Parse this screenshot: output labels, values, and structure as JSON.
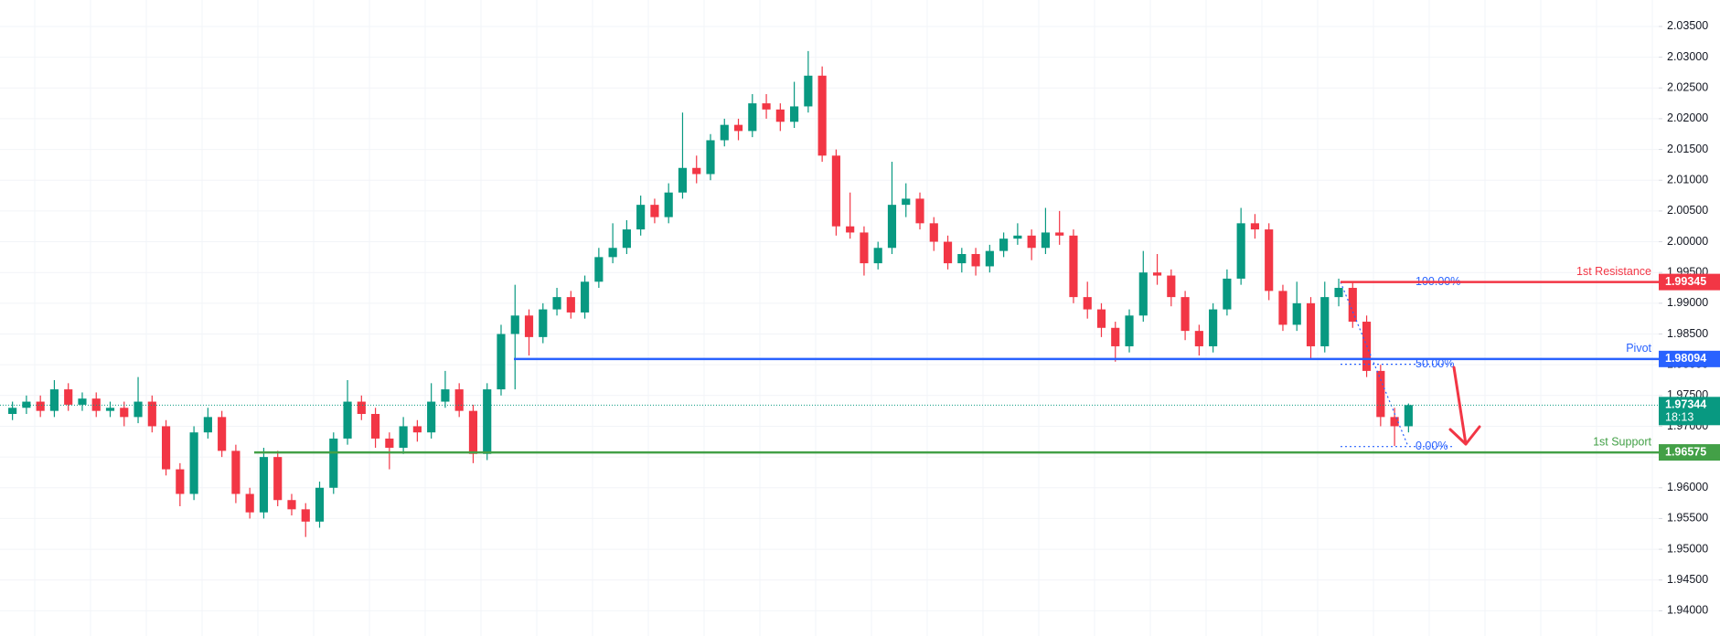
{
  "chart_data": {
    "type": "candlestick",
    "up_color": "#089981",
    "down_color": "#f23645",
    "grid": true,
    "ylim": [
      1.9359,
      2.0393
    ],
    "yticks": [
      {
        "value": 1.94,
        "label": "1.94000"
      },
      {
        "value": 1.945,
        "label": "1.94500"
      },
      {
        "value": 1.95,
        "label": "1.95000"
      },
      {
        "value": 1.955,
        "label": "1.95500"
      },
      {
        "value": 1.96,
        "label": "1.96000"
      },
      {
        "value": 1.965,
        "label": "1.96500"
      },
      {
        "value": 1.97,
        "label": "1.97000"
      },
      {
        "value": 1.975,
        "label": "1.97500"
      },
      {
        "value": 1.98,
        "label": "1.98000"
      },
      {
        "value": 1.985,
        "label": "1.98500"
      },
      {
        "value": 1.99,
        "label": "1.99000"
      },
      {
        "value": 1.995,
        "label": "1.99500"
      },
      {
        "value": 2.0,
        "label": "2.00000"
      },
      {
        "value": 2.005,
        "label": "2.00500"
      },
      {
        "value": 2.01,
        "label": "2.01000"
      },
      {
        "value": 2.015,
        "label": "2.01500"
      },
      {
        "value": 2.02,
        "label": "2.02000"
      },
      {
        "value": 2.025,
        "label": "2.02500"
      },
      {
        "value": 2.03,
        "label": "2.03000"
      },
      {
        "value": 2.035,
        "label": "2.03500"
      }
    ],
    "open": [
      1.972,
      1.973,
      1.974,
      1.9725,
      1.976,
      1.9735,
      1.9745,
      1.9725,
      1.973,
      1.9715,
      1.974,
      1.97,
      1.963,
      1.959,
      1.969,
      1.9715,
      1.966,
      1.959,
      1.956,
      1.965,
      1.958,
      1.9565,
      1.9545,
      1.96,
      1.968,
      1.974,
      1.972,
      1.968,
      1.9665,
      1.97,
      1.969,
      1.974,
      1.976,
      1.9725,
      1.9655,
      1.976,
      1.985,
      1.988,
      1.9845,
      1.989,
      1.991,
      1.9885,
      1.9935,
      1.9975,
      1.999,
      2.002,
      2.006,
      2.004,
      2.008,
      2.012,
      2.011,
      2.0165,
      2.019,
      2.018,
      2.0225,
      2.0215,
      2.0195,
      2.022,
      2.027,
      2.014,
      2.0025,
      2.0015,
      1.9965,
      1.999,
      2.006,
      2.007,
      2.003,
      2.0,
      1.9965,
      1.998,
      1.996,
      1.9985,
      2.0005,
      2.001,
      1.999,
      2.0015,
      2.001,
      1.991,
      1.989,
      1.986,
      1.983,
      1.988,
      1.995,
      1.9945,
      1.991,
      1.9855,
      1.983,
      1.989,
      1.994,
      2.003,
      2.002,
      1.992,
      1.9865,
      1.99,
      1.983,
      1.991,
      1.9925,
      1.987,
      1.979,
      1.9715,
      1.97
    ],
    "high": [
      1.974,
      1.975,
      1.975,
      1.9775,
      1.977,
      1.9755,
      1.9755,
      1.974,
      1.974,
      1.978,
      1.975,
      1.971,
      1.964,
      1.97,
      1.973,
      1.9725,
      1.967,
      1.96,
      1.9665,
      1.966,
      1.959,
      1.9575,
      1.961,
      1.969,
      1.9775,
      1.975,
      1.973,
      1.969,
      1.9715,
      1.971,
      1.977,
      1.979,
      1.977,
      1.9735,
      1.977,
      1.9865,
      1.993,
      1.989,
      1.99,
      1.9925,
      1.992,
      1.9945,
      1.999,
      2.003,
      2.0035,
      2.0075,
      2.007,
      2.0095,
      2.021,
      2.014,
      2.0175,
      2.02,
      2.02,
      2.024,
      2.024,
      2.0225,
      2.026,
      2.031,
      2.0285,
      2.015,
      2.008,
      2.0025,
      2.0,
      2.013,
      2.0095,
      2.008,
      2.004,
      2.001,
      1.999,
      1.999,
      1.9995,
      2.0015,
      2.003,
      2.002,
      2.0055,
      2.005,
      2.002,
      1.9935,
      1.99,
      1.987,
      1.989,
      1.9985,
      1.998,
      1.9955,
      1.992,
      1.9865,
      1.99,
      1.9955,
      2.0055,
      2.0045,
      2.003,
      1.993,
      1.9935,
      1.991,
      1.9935,
      1.994,
      1.9935,
      1.988,
      1.98,
      1.973,
      1.9737
    ],
    "low": [
      1.971,
      1.972,
      1.9715,
      1.9715,
      1.9725,
      1.9725,
      1.9715,
      1.9715,
      1.97,
      1.9705,
      1.969,
      1.962,
      1.957,
      1.958,
      1.968,
      1.965,
      1.9575,
      1.955,
      1.955,
      1.957,
      1.9555,
      1.952,
      1.9535,
      1.959,
      1.967,
      1.971,
      1.9665,
      1.963,
      1.9655,
      1.9675,
      1.968,
      1.973,
      1.9715,
      1.964,
      1.9645,
      1.975,
      1.976,
      1.9815,
      1.9835,
      1.988,
      1.9875,
      1.9875,
      1.9925,
      1.9965,
      1.998,
      2.001,
      2.003,
      2.003,
      2.007,
      2.0095,
      2.01,
      2.0155,
      2.0165,
      2.017,
      2.02,
      2.018,
      2.0185,
      2.021,
      2.013,
      2.001,
      2.0005,
      1.9945,
      1.9955,
      1.998,
      2.004,
      2.002,
      1.9985,
      1.9955,
      1.995,
      1.9945,
      1.995,
      1.9975,
      1.9995,
      1.997,
      1.998,
      1.9995,
      1.99,
      1.9875,
      1.9845,
      1.9805,
      1.982,
      1.987,
      1.993,
      1.9895,
      1.984,
      1.9815,
      1.982,
      1.988,
      1.993,
      2.0005,
      1.9905,
      1.9855,
      1.9855,
      1.981,
      1.982,
      1.9895,
      1.986,
      1.978,
      1.97,
      1.9668,
      1.969
    ],
    "close": [
      1.973,
      1.974,
      1.9725,
      1.976,
      1.9735,
      1.9745,
      1.9725,
      1.973,
      1.9715,
      1.974,
      1.97,
      1.963,
      1.959,
      1.969,
      1.9715,
      1.966,
      1.959,
      1.956,
      1.965,
      1.958,
      1.9565,
      1.9545,
      1.96,
      1.968,
      1.974,
      1.972,
      1.968,
      1.9665,
      1.97,
      1.969,
      1.974,
      1.976,
      1.9725,
      1.9655,
      1.976,
      1.985,
      1.988,
      1.9845,
      1.989,
      1.991,
      1.9885,
      1.9935,
      1.9975,
      1.999,
      2.002,
      2.006,
      2.004,
      2.008,
      2.012,
      2.011,
      2.0165,
      2.019,
      2.018,
      2.0225,
      2.0215,
      2.0195,
      2.022,
      2.027,
      2.014,
      2.0025,
      2.0015,
      1.9965,
      1.999,
      2.006,
      2.007,
      2.003,
      2.0,
      1.9965,
      1.998,
      1.996,
      1.9985,
      2.0005,
      2.001,
      1.999,
      2.0015,
      2.001,
      1.991,
      1.989,
      1.986,
      1.983,
      1.988,
      1.995,
      1.9945,
      1.991,
      1.9855,
      1.983,
      1.989,
      1.994,
      2.003,
      2.002,
      1.992,
      1.9865,
      1.99,
      1.983,
      1.991,
      1.9925,
      1.987,
      1.979,
      1.9715,
      1.97,
      1.97344
    ],
    "price_lines": [
      {
        "label": "1st Resistance",
        "value": 1.99345,
        "color": "#f23645"
      },
      {
        "label": "Pivot",
        "value": 1.98094,
        "color": "#2962ff"
      },
      {
        "label": "1st Support",
        "value": 1.96575,
        "color": "#43a047"
      }
    ],
    "last_price": {
      "value": 1.97344,
      "countdown": "18:13",
      "color": "#089981"
    },
    "fib": {
      "high": 1.99345,
      "low": 1.9667,
      "color": "#2962ff",
      "levels": [
        {
          "value": 100,
          "label": "100.00%"
        },
        {
          "value": 50,
          "label": "50.00%"
        },
        {
          "value": 0,
          "label": "0.00%"
        }
      ]
    }
  }
}
